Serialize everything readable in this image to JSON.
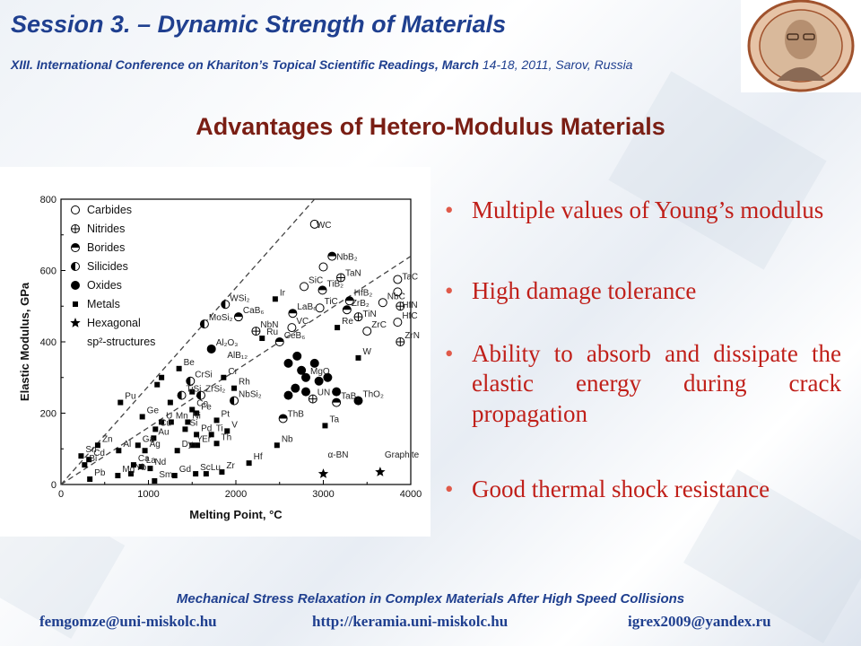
{
  "header": {
    "title": "Session 3. – Dynamic Strength of Materials",
    "subtitle_bold": "XIII. International Conference on Khariton’s Topical Scientific Readings, March",
    "subtitle_rest": " 14-18, 2011, Sarov, Russia"
  },
  "slide": {
    "heading": "Advantages of Hetero-Modulus Materials",
    "bullets": [
      "Multiple values of Young’s modulus",
      "High damage tolerance",
      "Ability to absorb and dissipate the elastic energy during crack propagation",
      "Good thermal shock resistance"
    ],
    "bullet_glyph": "•"
  },
  "footer": {
    "line1": "Mechanical Stress Relaxation in Complex Materials After High Speed Collisions",
    "email1": "femgomze@uni-miskolc.hu",
    "url": "http://keramia.uni-miskolc.hu",
    "email2": "igrex2009@yandex.ru"
  },
  "colors": {
    "title": "#1f3f8f",
    "heading": "#7a1e14",
    "bullets": "#c0201a"
  },
  "chart_data": {
    "type": "scatter",
    "xlabel": "Melting Point, °C",
    "ylabel": "Elastic Modulus, GPa",
    "xlim": [
      0,
      4000
    ],
    "ylim": [
      0,
      800
    ],
    "xticks": [
      "0",
      "1000",
      "2000",
      "3000",
      "4000"
    ],
    "yticks": [
      "0",
      "200",
      "400",
      "600",
      "800"
    ],
    "legend": [
      "Carbides",
      "Nitrides",
      "Borides",
      "Silicides",
      "Oxides",
      "Metals",
      "Hexagonal",
      "sp²-structures"
    ],
    "legend_position": "top-left",
    "annotations": [
      {
        "text": "WC",
        "x": 2870,
        "y": 710
      },
      {
        "text": "NbB₂",
        "x": 3100,
        "y": 620
      },
      {
        "text": "TaN",
        "x": 3200,
        "y": 575
      },
      {
        "text": "SiC",
        "x": 2780,
        "y": 555
      },
      {
        "text": "TiB₂",
        "x": 2990,
        "y": 545
      },
      {
        "text": "TaC",
        "x": 3850,
        "y": 565
      },
      {
        "text": "HfB₂",
        "x": 3300,
        "y": 520
      },
      {
        "text": "NbC",
        "x": 3680,
        "y": 510
      },
      {
        "text": "HfN",
        "x": 3850,
        "y": 485
      },
      {
        "text": "WSi₂",
        "x": 1880,
        "y": 505
      },
      {
        "text": "Ir",
        "x": 2450,
        "y": 520
      },
      {
        "text": "TiC",
        "x": 2960,
        "y": 495
      },
      {
        "text": "ZrB₂",
        "x": 3270,
        "y": 490
      },
      {
        "text": "TiN",
        "x": 3400,
        "y": 460
      },
      {
        "text": "HfC",
        "x": 3850,
        "y": 455
      },
      {
        "text": "CaB₆",
        "x": 2030,
        "y": 470
      },
      {
        "text": "LaB₆",
        "x": 2650,
        "y": 480
      },
      {
        "text": "MoSi₂",
        "x": 1640,
        "y": 450
      },
      {
        "text": "NbN",
        "x": 2230,
        "y": 430
      },
      {
        "text": "Ru",
        "x": 2300,
        "y": 410
      },
      {
        "text": "VC",
        "x": 2640,
        "y": 440
      },
      {
        "text": "Re",
        "x": 3160,
        "y": 440
      },
      {
        "text": "ZrC",
        "x": 3500,
        "y": 430
      },
      {
        "text": "ZrN",
        "x": 3880,
        "y": 400
      },
      {
        "text": "CeB₆",
        "x": 2500,
        "y": 400
      },
      {
        "text": "Al₂O₃",
        "x": 1720,
        "y": 380
      },
      {
        "text": "Be",
        "x": 1350,
        "y": 325
      },
      {
        "text": "AlB₁₂",
        "x": 1850,
        "y": 345
      },
      {
        "text": "W",
        "x": 3400,
        "y": 355
      },
      {
        "text": "Cr",
        "x": 1860,
        "y": 300
      },
      {
        "text": "Rh",
        "x": 1980,
        "y": 270
      },
      {
        "text": "MgO",
        "x": 2800,
        "y": 300
      },
      {
        "text": "CrSi",
        "x": 1480,
        "y": 290
      },
      {
        "text": "TiSi",
        "x": 1380,
        "y": 250
      },
      {
        "text": "ZrSi₂",
        "x": 1600,
        "y": 250
      },
      {
        "text": "NbSi₂",
        "x": 1980,
        "y": 235
      },
      {
        "text": "ThO₂",
        "x": 3400,
        "y": 235
      },
      {
        "text": "Pu",
        "x": 680,
        "y": 230
      },
      {
        "text": "Co",
        "x": 1500,
        "y": 210
      },
      {
        "text": "Fe",
        "x": 1550,
        "y": 200
      },
      {
        "text": "UN",
        "x": 2880,
        "y": 240
      },
      {
        "text": "TaB₂",
        "x": 3150,
        "y": 230
      },
      {
        "text": "Ge",
        "x": 930,
        "y": 190
      },
      {
        "text": "U",
        "x": 1150,
        "y": 175
      },
      {
        "text": "Mn",
        "x": 1260,
        "y": 175
      },
      {
        "text": "Ni",
        "x": 1450,
        "y": 175
      },
      {
        "text": "Pt",
        "x": 1780,
        "y": 180
      },
      {
        "text": "ThB",
        "x": 2540,
        "y": 180
      },
      {
        "text": "Ta",
        "x": 3020,
        "y": 165
      },
      {
        "text": "Cu",
        "x": 1080,
        "y": 155
      },
      {
        "text": "Si",
        "x": 1420,
        "y": 155
      },
      {
        "text": "V",
        "x": 1900,
        "y": 150
      },
      {
        "text": "Au",
        "x": 1060,
        "y": 130
      },
      {
        "text": "Pd",
        "x": 1550,
        "y": 140
      },
      {
        "text": "Ti",
        "x": 1720,
        "y": 140
      },
      {
        "text": "Nb",
        "x": 2470,
        "y": 110
      },
      {
        "text": "Zn",
        "x": 420,
        "y": 110
      },
      {
        "text": "Al",
        "x": 660,
        "y": 95
      },
      {
        "text": "Ag",
        "x": 960,
        "y": 95
      },
      {
        "text": "Ga",
        "x": 880,
        "y": 110
      },
      {
        "text": "Dy",
        "x": 1330,
        "y": 95
      },
      {
        "text": "Y",
        "x": 1500,
        "y": 110
      },
      {
        "text": "Er",
        "x": 1560,
        "y": 110
      },
      {
        "text": "Th",
        "x": 1780,
        "y": 115
      },
      {
        "text": "Sn",
        "x": 230,
        "y": 80
      },
      {
        "text": "Cd",
        "x": 320,
        "y": 70
      },
      {
        "text": "Bi",
        "x": 270,
        "y": 55
      },
      {
        "text": "La",
        "x": 920,
        "y": 50
      },
      {
        "text": "Ca",
        "x": 830,
        "y": 55
      },
      {
        "text": "Nd",
        "x": 1020,
        "y": 45
      },
      {
        "text": "Hf",
        "x": 2150,
        "y": 60
      },
      {
        "text": "Pb",
        "x": 330,
        "y": 15
      },
      {
        "text": "Mg",
        "x": 650,
        "y": 25
      },
      {
        "text": "Sm",
        "x": 1070,
        "y": 10
      },
      {
        "text": "Gd",
        "x": 1300,
        "y": 25
      },
      {
        "text": "Sc",
        "x": 1540,
        "y": 30
      },
      {
        "text": "Lu",
        "x": 1660,
        "y": 30
      },
      {
        "text": "Zr",
        "x": 1840,
        "y": 35
      },
      {
        "text": "Yb",
        "x": 800,
        "y": 30
      },
      {
        "text": "α-BN",
        "x": 3000,
        "y": 65
      },
      {
        "text": "Graphite",
        "x": 3650,
        "y": 65
      }
    ],
    "markers": {
      "carbide": [
        [
          2900,
          730
        ],
        [
          3000,
          610
        ],
        [
          3850,
          575
        ],
        [
          2780,
          555
        ],
        [
          2960,
          495
        ],
        [
          2640,
          440
        ],
        [
          3500,
          430
        ],
        [
          3850,
          455
        ],
        [
          3680,
          510
        ],
        [
          3850,
          540
        ]
      ],
      "nitride": [
        [
          3200,
          580
        ],
        [
          3400,
          470
        ],
        [
          3880,
          500
        ],
        [
          3880,
          400
        ],
        [
          2230,
          430
        ],
        [
          2880,
          240
        ]
      ],
      "boride": [
        [
          3100,
          640
        ],
        [
          2990,
          545
        ],
        [
          3300,
          515
        ],
        [
          3270,
          490
        ],
        [
          2030,
          470
        ],
        [
          2650,
          480
        ],
        [
          2500,
          400
        ],
        [
          3150,
          230
        ],
        [
          2540,
          185
        ]
      ],
      "silicide": [
        [
          1880,
          505
        ],
        [
          1640,
          450
        ],
        [
          1480,
          290
        ],
        [
          1380,
          250
        ],
        [
          1600,
          250
        ],
        [
          1980,
          235
        ]
      ],
      "oxide": [
        [
          1720,
          380
        ],
        [
          2800,
          300
        ],
        [
          3400,
          235
        ],
        [
          2600,
          340
        ],
        [
          2700,
          360
        ],
        [
          2750,
          320
        ],
        [
          2900,
          340
        ],
        [
          2680,
          270
        ],
        [
          2800,
          260
        ],
        [
          2950,
          290
        ],
        [
          3050,
          300
        ],
        [
          3150,
          260
        ],
        [
          2600,
          250
        ]
      ],
      "metal": [
        [
          2450,
          520
        ],
        [
          2300,
          410
        ],
        [
          3160,
          440
        ],
        [
          1350,
          325
        ],
        [
          3400,
          355
        ],
        [
          1860,
          300
        ],
        [
          1980,
          270
        ],
        [
          680,
          230
        ],
        [
          1500,
          210
        ],
        [
          1550,
          200
        ],
        [
          930,
          190
        ],
        [
          1150,
          175
        ],
        [
          1260,
          175
        ],
        [
          1450,
          175
        ],
        [
          1780,
          180
        ],
        [
          3020,
          165
        ],
        [
          1080,
          155
        ],
        [
          1420,
          155
        ],
        [
          1900,
          150
        ],
        [
          1060,
          130
        ],
        [
          1550,
          140
        ],
        [
          1720,
          140
        ],
        [
          2470,
          110
        ],
        [
          420,
          110
        ],
        [
          660,
          95
        ],
        [
          960,
          95
        ],
        [
          880,
          110
        ],
        [
          1330,
          95
        ],
        [
          1500,
          110
        ],
        [
          1560,
          110
        ],
        [
          1780,
          115
        ],
        [
          230,
          80
        ],
        [
          320,
          70
        ],
        [
          270,
          55
        ],
        [
          920,
          50
        ],
        [
          830,
          55
        ],
        [
          1020,
          45
        ],
        [
          2150,
          60
        ],
        [
          330,
          15
        ],
        [
          650,
          25
        ],
        [
          1070,
          10
        ],
        [
          1300,
          25
        ],
        [
          1540,
          30
        ],
        [
          1660,
          30
        ],
        [
          1840,
          35
        ],
        [
          800,
          30
        ],
        [
          1100,
          280
        ],
        [
          1250,
          230
        ],
        [
          1150,
          300
        ],
        [
          1500,
          260
        ]
      ],
      "hexagonal": [
        [
          3000,
          30
        ],
        [
          3650,
          35
        ]
      ]
    },
    "guide_lines": [
      [
        [
          0,
          0
        ],
        [
          2900,
          800
        ]
      ],
      [
        [
          0,
          0
        ],
        [
          4000,
          640
        ]
      ]
    ]
  }
}
